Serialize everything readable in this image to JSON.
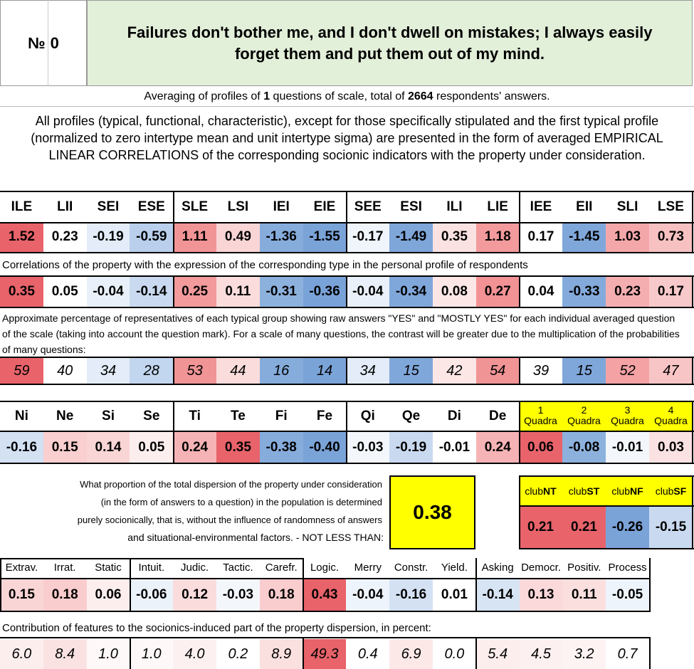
{
  "header": {
    "number_label": "№",
    "number_value": "0",
    "question": "Failures don't bother me, and I don't dwell on mistakes; I always easily forget them and put them out of my mind."
  },
  "averaging": {
    "prefix": "Averaging of profiles of ",
    "questions": "1",
    "middle": " questions of scale, total of ",
    "respondents": "2664",
    "suffix": " respondents' answers."
  },
  "description": "All profiles (typical, functional, characteristic), except for those specifically stipulated and the first typical profile (normalized to zero intertype mean and unit intertype sigma) are presented in the form of averaged EMPIRICAL LINEAR CORRELATIONS of the corresponding socionic indicators with the property under consideration.",
  "types": {
    "headers": [
      "ILE",
      "LII",
      "SEI",
      "ESE",
      "SLE",
      "LSI",
      "IEI",
      "EIE",
      "SEE",
      "ESI",
      "ILI",
      "LIE",
      "IEE",
      "EII",
      "SLI",
      "LSE"
    ],
    "normalized": [
      "1.52",
      "0.23",
      "-0.19",
      "-0.59",
      "1.11",
      "0.49",
      "-1.36",
      "-1.55",
      "-0.17",
      "-1.49",
      "0.35",
      "1.18",
      "0.17",
      "-1.45",
      "1.03",
      "0.73"
    ],
    "correlations_caption": "Correlations of the property with the expression of the corresponding type in the personal profile of respondents",
    "correlations": [
      "0.35",
      "0.05",
      "-0.04",
      "-0.14",
      "0.25",
      "0.11",
      "-0.31",
      "-0.36",
      "-0.04",
      "-0.34",
      "0.08",
      "0.27",
      "0.04",
      "-0.33",
      "0.23",
      "0.17"
    ],
    "percent_caption": "Approximate percentage of representatives of each typical group showing raw answers \"YES\" and \"MOSTLY YES\" for each individual averaged question of the scale (taking into account the question mark). For a scale of many questions, the contrast will be greater due to the multiplication of the probabilities of many questions:",
    "percentages": [
      "59",
      "40",
      "34",
      "28",
      "53",
      "44",
      "16",
      "14",
      "34",
      "15",
      "42",
      "54",
      "39",
      "15",
      "52",
      "47"
    ],
    "colors_normalized": [
      "#e8636a",
      "#ffffff",
      "#e3ecf8",
      "#b9cfec",
      "#f19496",
      "#fad5d6",
      "#86acdc",
      "#7aa3d8",
      "#f0f5fb",
      "#7ea6d9",
      "#fbe2e2",
      "#f29a9c",
      "#ffffff",
      "#80a7da",
      "#f4a7a9",
      "#f7c1c2"
    ],
    "colors_corr": [
      "#e8636a",
      "#ffffff",
      "#e9f0f9",
      "#c9daf0",
      "#f29a9c",
      "#fbdcdc",
      "#8db1dd",
      "#79a2d8",
      "#e9f0f9",
      "#80a7da",
      "#fde6e6",
      "#f29295",
      "#ffffff",
      "#84aadb",
      "#f5aeb0",
      "#f8c9ca"
    ],
    "colors_pct": [
      "#e8636a",
      "#ffffff",
      "#e3ecf8",
      "#c3d6ef",
      "#f09496",
      "#fbdcdc",
      "#86acdc",
      "#7aa3d8",
      "#e3ecf8",
      "#80a7da",
      "#fde6e6",
      "#f19496",
      "#ffffff",
      "#80a7da",
      "#f4a2a4",
      "#f8c5c6"
    ]
  },
  "functions": {
    "headers": [
      "Ni",
      "Ne",
      "Si",
      "Se",
      "Ti",
      "Te",
      "Fi",
      "Fe",
      "Qi",
      "Qe",
      "Di",
      "De"
    ],
    "values": [
      "-0.16",
      "0.15",
      "0.14",
      "0.05",
      "0.24",
      "0.35",
      "-0.38",
      "-0.40",
      "-0.03",
      "-0.19",
      "-0.01",
      "0.24"
    ],
    "colors": [
      "#d3e1f3",
      "#f9cfd0",
      "#fad5d6",
      "#fdeeee",
      "#f6b3b5",
      "#e8636a",
      "#86acdc",
      "#7aa3d8",
      "#f3f7fc",
      "#c9daf0",
      "#ffffff",
      "#f6b3b5"
    ]
  },
  "quadras": {
    "headers": [
      {
        "num": "1",
        "label": "Quadra"
      },
      {
        "num": "2",
        "label": "Quadra"
      },
      {
        "num": "3",
        "label": "Quadra"
      },
      {
        "num": "4",
        "label": "Quadra"
      }
    ],
    "values": [
      "0.06",
      "-0.08",
      "-0.01",
      "0.03"
    ],
    "colors": [
      "#e8636a",
      "#8db1dd",
      "#f3f7fc",
      "#fbe2e2"
    ],
    "header_color": "#ffff00"
  },
  "dispersion": {
    "lines": [
      "What proportion of the total dispersion of the property under consideration",
      "(in the form of answers to a question) in the population is determined",
      "purely socionically, that is, without the influence of randomness of answers",
      "and situational-environmental factors. - NOT LESS THAN:"
    ],
    "value": "0.38",
    "box_color": "#ffff00"
  },
  "clubs": {
    "headers": [
      {
        "prefix": "club",
        "bold": "NT"
      },
      {
        "prefix": "club",
        "bold": "ST"
      },
      {
        "prefix": "club",
        "bold": "NF"
      },
      {
        "prefix": "club",
        "bold": "SF"
      }
    ],
    "values": [
      "0.21",
      "0.21",
      "-0.26",
      "-0.15"
    ],
    "colors": [
      "#e8636a",
      "#e8636a",
      "#7aa3d8",
      "#c9daf0"
    ]
  },
  "reinin": {
    "headers": [
      "Extrav.",
      "Irrat.",
      "Static",
      "Intuit.",
      "Judic.",
      "Tactic.",
      "Carefr.",
      "Logic.",
      "Merry",
      "Constr.",
      "Yield.",
      "Asking",
      "Democr.",
      "Positiv.",
      "Process"
    ],
    "values": [
      "0.15",
      "0.18",
      "0.06",
      "-0.06",
      "0.12",
      "-0.03",
      "0.18",
      "0.43",
      "-0.04",
      "-0.16",
      "0.01",
      "-0.14",
      "0.13",
      "0.11",
      "-0.05"
    ],
    "colors": [
      "#fad5d6",
      "#f9cccd",
      "#fdeeee",
      "#ecf2fa",
      "#fbdcdc",
      "#f3f7fc",
      "#f9cccd",
      "#e8636a",
      "#eef4fb",
      "#d3e1f3",
      "#ffffff",
      "#d7e4f4",
      "#fbd9da",
      "#fbdfdf",
      "#eef4fb"
    ],
    "contribution_caption": "Contribution of features to the socionics-induced part of the property dispersion, in percent:",
    "contributions": [
      "6.0",
      "8.4",
      "1.0",
      "1.0",
      "4.0",
      "0.2",
      "8.9",
      "49.3",
      "0.4",
      "6.9",
      "0.0",
      "5.4",
      "4.5",
      "3.2",
      "0.7"
    ],
    "contribution_colors": [
      "#fdeeee",
      "#fbe2e2",
      "#fff8f8",
      "#fff8f8",
      "#fdf0f0",
      "#ffffff",
      "#fbe0e0",
      "#e8636a",
      "#ffffff",
      "#fde8e8",
      "#ffffff",
      "#fdeeee",
      "#fdf0f0",
      "#fdf3f3",
      "#ffffff"
    ]
  }
}
